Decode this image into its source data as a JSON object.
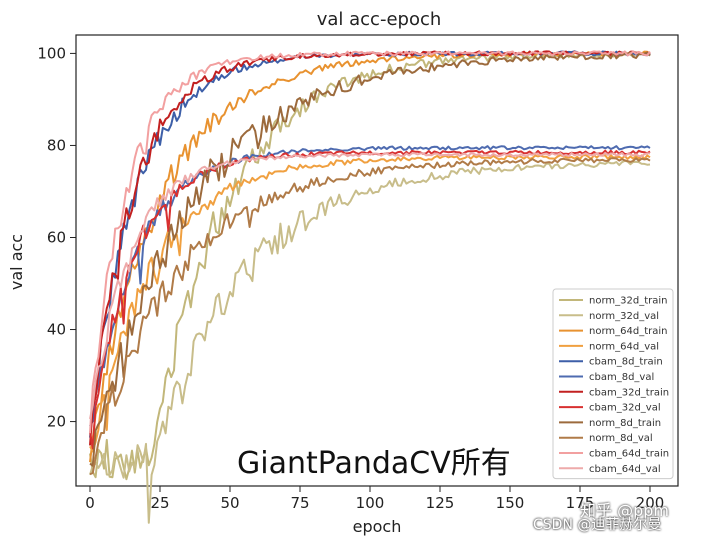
{
  "chart_data": {
    "type": "line",
    "title": "val acc-epoch",
    "xlabel": "epoch",
    "ylabel": "val acc",
    "xlim": [
      -5,
      210
    ],
    "ylim": [
      6,
      104
    ],
    "xticks": [
      0,
      25,
      50,
      75,
      100,
      125,
      150,
      175,
      200
    ],
    "yticks": [
      20,
      40,
      60,
      80,
      100
    ],
    "legend_position": "lower-right",
    "series": [
      {
        "name": "norm_32d_train",
        "color": "#c2b77a",
        "final": 100,
        "rise": 0.038,
        "delay": 22,
        "start": 12,
        "noise": 4
      },
      {
        "name": "norm_32d_val",
        "color": "#c8bd8a",
        "final": 76.5,
        "rise": 0.03,
        "delay": 22,
        "start": 11,
        "noise": 3.5
      },
      {
        "name": "norm_64d_train",
        "color": "#e89230",
        "final": 100,
        "rise": 0.04,
        "delay": 0,
        "start": 13,
        "noise": 3
      },
      {
        "name": "norm_64d_val",
        "color": "#f0a040",
        "final": 77.5,
        "rise": 0.045,
        "delay": 0,
        "start": 12,
        "noise": 3
      },
      {
        "name": "cbam_8d_train",
        "color": "#3d5fa8",
        "final": 100,
        "rise": 0.06,
        "delay": 0,
        "start": 18,
        "noise": 3
      },
      {
        "name": "cbam_8d_val",
        "color": "#4e6bb0",
        "final": 79.5,
        "rise": 0.06,
        "delay": 0,
        "start": 17,
        "noise": 2.5
      },
      {
        "name": "cbam_32d_train",
        "color": "#c22020",
        "final": 100,
        "rise": 0.065,
        "delay": 0,
        "start": 17,
        "noise": 3
      },
      {
        "name": "cbam_32d_val",
        "color": "#d83030",
        "final": 78.5,
        "rise": 0.065,
        "delay": 0,
        "start": 16,
        "noise": 2.5
      },
      {
        "name": "norm_8d_train",
        "color": "#9c6a3c",
        "final": 100,
        "rise": 0.028,
        "delay": 0,
        "start": 10,
        "noise": 4
      },
      {
        "name": "norm_8d_val",
        "color": "#b07b48",
        "final": 77,
        "rise": 0.032,
        "delay": 0,
        "start": 9.5,
        "noise": 3
      },
      {
        "name": "cbam_64d_train",
        "color": "#f2a0a0",
        "final": 100,
        "rise": 0.075,
        "delay": 0,
        "start": 20,
        "noise": 3
      },
      {
        "name": "cbam_64d_val",
        "color": "#eeaaaa",
        "final": 78,
        "rise": 0.07,
        "delay": 0,
        "start": 19,
        "noise": 2.5
      }
    ]
  },
  "watermark": "GiantPandaCV所有",
  "zhihu_mark": "知乎 @ppm",
  "csdn_mark": "CSDN @迪菲赫尔曼"
}
